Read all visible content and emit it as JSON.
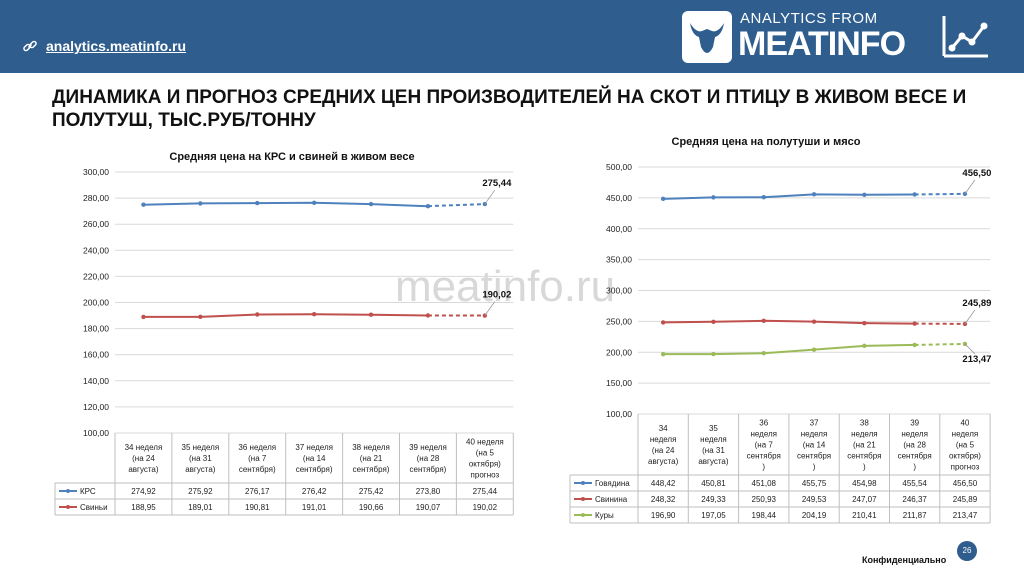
{
  "header": {
    "site_link": "analytics.meatinfo.ru",
    "logo_top": "ANALYTICS FROM",
    "logo_main": "MEATINFO"
  },
  "page_title": "ДИНАМИКА И ПРОГНОЗ СРЕДНИХ ЦЕН ПРОИЗВОДИТЕЛЕЙ НА СКОТ И ПТИЦУ В ЖИВОМ ВЕСЕ И ПОЛУТУШ, ТЫС.РУБ/ТОННУ",
  "watermark": "meatinfo.ru",
  "footer": {
    "confidential": "Конфиденциально",
    "page_number": "26"
  },
  "colors": {
    "header_bg": "#2e5d8e",
    "beef": "#4f81bd",
    "pork": "#c0504d",
    "chicken": "#9bbb59"
  },
  "chart_data": [
    {
      "type": "line",
      "title": "Средняя цена на КРС и свиней в живом весе",
      "categories": [
        [
          "34 неделя",
          "(на 24",
          "августа)"
        ],
        [
          "35 неделя",
          "(на 31",
          "августа)"
        ],
        [
          "36 неделя",
          "(на 7",
          "сентября)"
        ],
        [
          "37 неделя",
          "(на 14",
          "сентября)"
        ],
        [
          "38 неделя",
          "(на 21",
          "сентября)"
        ],
        [
          "39 неделя",
          "(на 28",
          "сентября)"
        ],
        [
          "40 неделя",
          "(на 5",
          "октября)",
          "прогноз"
        ]
      ],
      "yticks": [
        "100,00",
        "120,00",
        "140,00",
        "160,00",
        "180,00",
        "200,00",
        "220,00",
        "240,00",
        "260,00",
        "280,00",
        "300,00"
      ],
      "ylim": [
        100,
        300
      ],
      "forecast_from_index": 5,
      "legend_placement": "table-left",
      "series": [
        {
          "name": "КРС",
          "color": "#4f81bd",
          "values": [
            274.92,
            275.92,
            276.17,
            276.42,
            275.42,
            273.8,
            275.44
          ],
          "labels": [
            "274,92",
            "275,92",
            "276,17",
            "276,42",
            "275,42",
            "273,80",
            "275,44"
          ],
          "end_label": "275,44"
        },
        {
          "name": "Свиньи",
          "color": "#c0504d",
          "values": [
            188.95,
            189.01,
            190.81,
            191.01,
            190.66,
            190.07,
            190.02
          ],
          "labels": [
            "188,95",
            "189,01",
            "190,81",
            "191,01",
            "190,66",
            "190,07",
            "190,02"
          ],
          "end_label": "190,02"
        }
      ]
    },
    {
      "type": "line",
      "title": "Средняя цена на полутуши и мясо",
      "categories": [
        [
          "34",
          "неделя",
          "(на 24",
          "августа)"
        ],
        [
          "35",
          "неделя",
          "(на 31",
          "августа)"
        ],
        [
          "36",
          "неделя",
          "(на 7",
          "сентября",
          ")"
        ],
        [
          "37",
          "неделя",
          "(на 14",
          "сентября",
          ")"
        ],
        [
          "38",
          "неделя",
          "(на 21",
          "сентября",
          ")"
        ],
        [
          "39",
          "неделя",
          "(на 28",
          "сентября",
          ")"
        ],
        [
          "40",
          "неделя",
          "(на 5",
          "октября)",
          "прогноз"
        ]
      ],
      "yticks": [
        "100,00",
        "150,00",
        "200,00",
        "250,00",
        "300,00",
        "350,00",
        "400,00",
        "450,00",
        "500,00"
      ],
      "ylim": [
        100,
        500
      ],
      "forecast_from_index": 5,
      "legend_placement": "table-left",
      "series": [
        {
          "name": "Говядина",
          "color": "#4f81bd",
          "values": [
            448.42,
            450.81,
            451.08,
            455.75,
            454.98,
            455.54,
            456.5
          ],
          "labels": [
            "448,42",
            "450,81",
            "451,08",
            "455,75",
            "454,98",
            "455,54",
            "456,50"
          ],
          "end_label": "456,50"
        },
        {
          "name": "Свинина",
          "color": "#c0504d",
          "values": [
            248.32,
            249.33,
            250.93,
            249.53,
            247.07,
            246.37,
            245.89
          ],
          "labels": [
            "248,32",
            "249,33",
            "250,93",
            "249,53",
            "247,07",
            "246,37",
            "245,89"
          ],
          "end_label": "245,89"
        },
        {
          "name": "Куры",
          "color": "#9bbb59",
          "values": [
            196.9,
            197.05,
            198.44,
            204.19,
            210.41,
            211.87,
            213.47
          ],
          "labels": [
            "196,90",
            "197,05",
            "198,44",
            "204,19",
            "210,41",
            "211,87",
            "213,47"
          ],
          "end_label": "213,47"
        }
      ]
    }
  ]
}
